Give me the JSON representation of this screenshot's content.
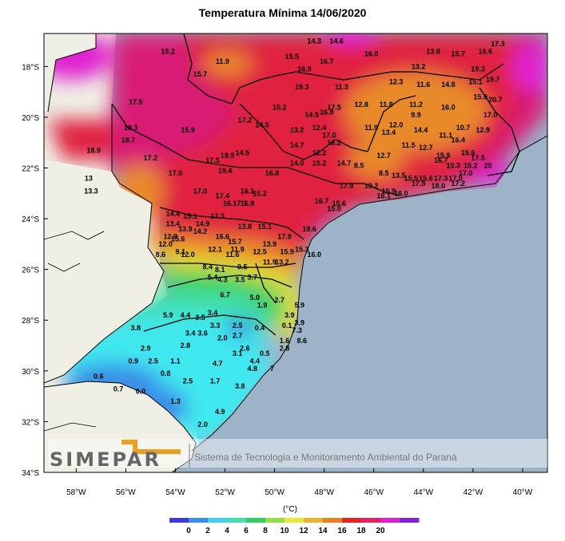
{
  "title": "Temperatura Mínima   14/06/2020",
  "unit_label": "(°C)",
  "watermark": {
    "logo_text": "SIMEPAR",
    "caption": "Sistema de Tecnologia e Monitoramento Ambiental do Paraná"
  },
  "lat_ticks": [
    {
      "label": "18°S",
      "value": -18
    },
    {
      "label": "20°S",
      "value": -20
    },
    {
      "label": "22°S",
      "value": -22
    },
    {
      "label": "24°S",
      "value": -24
    },
    {
      "label": "26°S",
      "value": -26
    },
    {
      "label": "28°S",
      "value": -28
    },
    {
      "label": "30°S",
      "value": -30
    },
    {
      "label": "32°S",
      "value": -32
    },
    {
      "label": "34°S",
      "value": -34
    }
  ],
  "lon_ticks": [
    {
      "label": "58°W",
      "value": -58
    },
    {
      "label": "56°W",
      "value": -56
    },
    {
      "label": "54°W",
      "value": -54
    },
    {
      "label": "52°W",
      "value": -52
    },
    {
      "label": "50°W",
      "value": -50
    },
    {
      "label": "48°W",
      "value": -48
    },
    {
      "label": "46°W",
      "value": -46
    },
    {
      "label": "44°W",
      "value": -44
    },
    {
      "label": "42°W",
      "value": -42
    },
    {
      "label": "40°W",
      "value": -40
    }
  ],
  "colorbar": {
    "colors": [
      "#3a3ae0",
      "#3c8cf0",
      "#40d0f0",
      "#40e0b0",
      "#30d060",
      "#90e040",
      "#e8e830",
      "#f0b030",
      "#e88020",
      "#e82020",
      "#e82060",
      "#e020d0",
      "#8020e0"
    ],
    "tick_labels": [
      "0",
      "2",
      "4",
      "6",
      "8",
      "10",
      "12",
      "14",
      "16",
      "18",
      "20"
    ]
  },
  "colors": {
    "ocean": "#9db3c8",
    "land_outside": "#efefe5",
    "deep_warm": "#d81a74",
    "warm": "#e02040",
    "orange": "#e88a2a",
    "yellow": "#e8e030",
    "green": "#40d060",
    "teal": "#40e0c0",
    "cyan": "#40e8f0",
    "blue": "#3a8ce8",
    "magenta": "#e020d0"
  },
  "stations": [
    {
      "lon": -54.3,
      "lat": -17.5,
      "t": "19.2"
    },
    {
      "lon": -52.1,
      "lat": -17.9,
      "t": "11.9"
    },
    {
      "lon": -49.3,
      "lat": -17.7,
      "t": "15.5"
    },
    {
      "lon": -48.4,
      "lat": -17.1,
      "t": "14.3"
    },
    {
      "lon": -47.5,
      "lat": -17.1,
      "t": "14.6"
    },
    {
      "lon": -46.1,
      "lat": -17.6,
      "t": "16.0"
    },
    {
      "lon": -47.9,
      "lat": -17.9,
      "t": "16.7"
    },
    {
      "lon": -48.8,
      "lat": -18.2,
      "t": "16.9"
    },
    {
      "lon": -43.6,
      "lat": -17.5,
      "t": "13.8"
    },
    {
      "lon": -42.6,
      "lat": -17.6,
      "t": "15.7"
    },
    {
      "lon": -41.0,
      "lat": -17.2,
      "t": "17.3"
    },
    {
      "lon": -44.2,
      "lat": -18.1,
      "t": "13.2"
    },
    {
      "lon": -41.5,
      "lat": -17.5,
      "t": "16.6"
    },
    {
      "lon": -41.8,
      "lat": -18.2,
      "t": "19.3"
    },
    {
      "lon": -41.2,
      "lat": -18.6,
      "t": "19.7"
    },
    {
      "lon": -53.0,
      "lat": -18.4,
      "t": "15.7"
    },
    {
      "lon": -48.9,
      "lat": -18.9,
      "t": "19.3"
    },
    {
      "lon": -47.3,
      "lat": -18.9,
      "t": "11.3"
    },
    {
      "lon": -45.1,
      "lat": -18.7,
      "t": "12.3"
    },
    {
      "lon": -44.0,
      "lat": -18.8,
      "t": "11.6"
    },
    {
      "lon": -43.0,
      "lat": -18.8,
      "t": "14.8"
    },
    {
      "lon": -41.9,
      "lat": -18.7,
      "t": "15.1"
    },
    {
      "lon": -41.7,
      "lat": -19.3,
      "t": "15.9"
    },
    {
      "lon": -41.1,
      "lat": -19.4,
      "t": "20.7"
    },
    {
      "lon": -55.6,
      "lat": -19.5,
      "t": "17.5"
    },
    {
      "lon": -49.8,
      "lat": -19.7,
      "t": "15.2"
    },
    {
      "lon": -47.6,
      "lat": -19.7,
      "t": "17.5"
    },
    {
      "lon": -46.5,
      "lat": -19.6,
      "t": "12.8"
    },
    {
      "lon": -45.5,
      "lat": -19.6,
      "t": "11.8"
    },
    {
      "lon": -44.3,
      "lat": -19.6,
      "t": "11.2"
    },
    {
      "lon": -43.0,
      "lat": -19.7,
      "t": "16.0"
    },
    {
      "lon": -48.5,
      "lat": -20.0,
      "t": "14.5"
    },
    {
      "lon": -47.9,
      "lat": -19.9,
      "t": "16.8"
    },
    {
      "lon": -45.1,
      "lat": -20.4,
      "t": "12.0"
    },
    {
      "lon": -44.3,
      "lat": -20.0,
      "t": "9.9"
    },
    {
      "lon": -41.3,
      "lat": -20.0,
      "t": "17.0"
    },
    {
      "lon": -51.2,
      "lat": -20.2,
      "t": "17.2"
    },
    {
      "lon": -50.5,
      "lat": -20.4,
      "t": "14.5"
    },
    {
      "lon": -49.1,
      "lat": -20.6,
      "t": "13.2"
    },
    {
      "lon": -48.2,
      "lat": -20.5,
      "t": "12.4"
    },
    {
      "lon": -47.8,
      "lat": -20.8,
      "t": "17.0"
    },
    {
      "lon": -46.1,
      "lat": -20.5,
      "t": "11.9"
    },
    {
      "lon": -42.4,
      "lat": -20.5,
      "t": "10.7"
    },
    {
      "lon": -41.6,
      "lat": -20.6,
      "t": "12.9"
    },
    {
      "lon": -55.8,
      "lat": -20.5,
      "t": "19.3"
    },
    {
      "lon": -53.5,
      "lat": -20.6,
      "t": "15.9"
    },
    {
      "lon": -45.4,
      "lat": -20.7,
      "t": "13.4"
    },
    {
      "lon": -44.1,
      "lat": -20.6,
      "t": "14.4"
    },
    {
      "lon": -43.1,
      "lat": -20.8,
      "t": "11.1"
    },
    {
      "lon": -55.9,
      "lat": -21.0,
      "t": "18.7"
    },
    {
      "lon": -47.6,
      "lat": -21.1,
      "t": "16.2"
    },
    {
      "lon": -49.1,
      "lat": -21.2,
      "t": "14.7"
    },
    {
      "lon": -48.2,
      "lat": -21.5,
      "t": "12.2"
    },
    {
      "lon": -44.6,
      "lat": -21.2,
      "t": "11.5"
    },
    {
      "lon": -43.9,
      "lat": -21.3,
      "t": "12.7"
    },
    {
      "lon": -42.6,
      "lat": -21.0,
      "t": "16.4"
    },
    {
      "lon": -57.3,
      "lat": -21.4,
      "t": "18.9"
    },
    {
      "lon": -51.9,
      "lat": -21.6,
      "t": "19.5"
    },
    {
      "lon": -51.3,
      "lat": -21.5,
      "t": "14.5"
    },
    {
      "lon": -55.0,
      "lat": -21.7,
      "t": "17.2"
    },
    {
      "lon": -52.5,
      "lat": -21.8,
      "t": "17.5"
    },
    {
      "lon": -45.6,
      "lat": -21.6,
      "t": "12.7"
    },
    {
      "lon": -43.2,
      "lat": -21.6,
      "t": "15.9"
    },
    {
      "lon": -42.2,
      "lat": -21.5,
      "t": "15.6"
    },
    {
      "lon": -41.8,
      "lat": -21.7,
      "t": "17.5"
    },
    {
      "lon": -49.1,
      "lat": -21.9,
      "t": "14.0"
    },
    {
      "lon": -48.2,
      "lat": -21.9,
      "t": "15.2"
    },
    {
      "lon": -47.2,
      "lat": -21.9,
      "t": "14.7"
    },
    {
      "lon": -46.6,
      "lat": -22.0,
      "t": "8.5"
    },
    {
      "lon": -43.3,
      "lat": -21.8,
      "t": "16.7"
    },
    {
      "lon": -42.8,
      "lat": -22.0,
      "t": "15.3"
    },
    {
      "lon": -42.1,
      "lat": -22.0,
      "t": "15.2"
    },
    {
      "lon": -41.4,
      "lat": -22.0,
      "t": "20"
    },
    {
      "lon": -52.0,
      "lat": -22.2,
      "t": "19.4"
    },
    {
      "lon": -50.1,
      "lat": -22.3,
      "t": "16.8"
    },
    {
      "lon": -54.0,
      "lat": -22.3,
      "t": "17.0"
    },
    {
      "lon": -45.6,
      "lat": -22.3,
      "t": "8.5"
    },
    {
      "lon": -45.0,
      "lat": -22.4,
      "t": "13.5"
    },
    {
      "lon": -44.5,
      "lat": -22.5,
      "t": "15.5"
    },
    {
      "lon": -43.9,
      "lat": -22.5,
      "t": "15.6"
    },
    {
      "lon": -43.3,
      "lat": -22.5,
      "t": "17.3"
    },
    {
      "lon": -42.7,
      "lat": -22.5,
      "t": "17.0"
    },
    {
      "lon": -42.3,
      "lat": -22.3,
      "t": "17.0"
    },
    {
      "lon": -57.5,
      "lat": -22.5,
      "t": "13"
    },
    {
      "lon": -47.1,
      "lat": -22.8,
      "t": "17.9"
    },
    {
      "lon": -46.1,
      "lat": -22.8,
      "t": "19.2"
    },
    {
      "lon": -44.2,
      "lat": -22.7,
      "t": "17.5"
    },
    {
      "lon": -43.4,
      "lat": -22.8,
      "t": "18.0"
    },
    {
      "lon": -42.6,
      "lat": -22.7,
      "t": "17.2"
    },
    {
      "lon": -57.4,
      "lat": -23.0,
      "t": "13.3"
    },
    {
      "lon": -52.1,
      "lat": -23.2,
      "t": "17.4"
    },
    {
      "lon": -53.0,
      "lat": -23.0,
      "t": "17.0"
    },
    {
      "lon": -51.1,
      "lat": -23.0,
      "t": "16.1"
    },
    {
      "lon": -50.6,
      "lat": -23.1,
      "t": "15.2"
    },
    {
      "lon": -45.4,
      "lat": -23.0,
      "t": "15.9"
    },
    {
      "lon": -45.6,
      "lat": -23.2,
      "t": "16.1"
    },
    {
      "lon": -44.9,
      "lat": -23.1,
      "t": "16.0"
    },
    {
      "lon": -51.8,
      "lat": -23.5,
      "t": "16.1"
    },
    {
      "lon": -51.1,
      "lat": -23.5,
      "t": "16.9"
    },
    {
      "lon": -51.4,
      "lat": -23.5,
      "t": "17.1"
    },
    {
      "lon": -48.1,
      "lat": -23.4,
      "t": "16.7"
    },
    {
      "lon": -47.4,
      "lat": -23.5,
      "t": "15.6"
    },
    {
      "lon": -47.6,
      "lat": -23.7,
      "t": "15.0"
    },
    {
      "lon": -53.4,
      "lat": -24.0,
      "t": "15.1"
    },
    {
      "lon": -52.3,
      "lat": -24.0,
      "t": "17.3"
    },
    {
      "lon": -54.1,
      "lat": -23.9,
      "t": "14.4"
    },
    {
      "lon": -52.9,
      "lat": -24.3,
      "t": "14.9"
    },
    {
      "lon": -54.1,
      "lat": -24.3,
      "t": "13.4"
    },
    {
      "lon": -51.2,
      "lat": -24.4,
      "t": "13.8"
    },
    {
      "lon": -50.4,
      "lat": -24.4,
      "t": "15.1"
    },
    {
      "lon": -53.6,
      "lat": -24.5,
      "t": "13.9"
    },
    {
      "lon": -53.0,
      "lat": -24.6,
      "t": "14.2"
    },
    {
      "lon": -52.1,
      "lat": -24.8,
      "t": "16.6"
    },
    {
      "lon": -54.2,
      "lat": -24.8,
      "t": "12.9"
    },
    {
      "lon": -53.9,
      "lat": -24.9,
      "t": "15.6"
    },
    {
      "lon": -51.6,
      "lat": -25.0,
      "t": "15.7"
    },
    {
      "lon": -49.6,
      "lat": -24.8,
      "t": "17.9"
    },
    {
      "lon": -48.6,
      "lat": -24.5,
      "t": "19.6"
    },
    {
      "lon": -50.2,
      "lat": -25.1,
      "t": "13.9"
    },
    {
      "lon": -54.4,
      "lat": -25.1,
      "t": "12.0"
    },
    {
      "lon": -53.8,
      "lat": -25.4,
      "t": "9.1"
    },
    {
      "lon": -53.5,
      "lat": -25.5,
      "t": "12.0"
    },
    {
      "lon": -52.4,
      "lat": -25.3,
      "t": "12.1"
    },
    {
      "lon": -51.5,
      "lat": -25.3,
      "t": "11.9"
    },
    {
      "lon": -51.7,
      "lat": -25.5,
      "t": "11.6"
    },
    {
      "lon": -50.6,
      "lat": -25.4,
      "t": "12.5"
    },
    {
      "lon": -49.5,
      "lat": -25.4,
      "t": "15.9"
    },
    {
      "lon": -48.9,
      "lat": -25.3,
      "t": "15.3"
    },
    {
      "lon": -48.4,
      "lat": -25.5,
      "t": "16.0"
    },
    {
      "lon": -54.6,
      "lat": -25.5,
      "t": "8.6"
    },
    {
      "lon": -50.2,
      "lat": -25.8,
      "t": "11.9"
    },
    {
      "lon": -49.7,
      "lat": -25.8,
      "t": "13.2"
    },
    {
      "lon": -52.7,
      "lat": -26.0,
      "t": "8.4"
    },
    {
      "lon": -52.2,
      "lat": -26.1,
      "t": "8.1"
    },
    {
      "lon": -51.3,
      "lat": -26.0,
      "t": "9.5"
    },
    {
      "lon": -52.5,
      "lat": -26.4,
      "t": "5.4"
    },
    {
      "lon": -52.1,
      "lat": -26.5,
      "t": "4.3"
    },
    {
      "lon": -51.4,
      "lat": -26.5,
      "t": "3.5"
    },
    {
      "lon": -50.9,
      "lat": -26.4,
      "t": "3.7"
    },
    {
      "lon": -52.0,
      "lat": -27.1,
      "t": "6.7"
    },
    {
      "lon": -50.8,
      "lat": -27.2,
      "t": "5.0"
    },
    {
      "lon": -50.5,
      "lat": -27.5,
      "t": "1.9"
    },
    {
      "lon": -49.8,
      "lat": -27.3,
      "t": "2.7"
    },
    {
      "lon": -49.0,
      "lat": -27.5,
      "t": "5.9"
    },
    {
      "lon": -52.5,
      "lat": -27.8,
      "t": "3.4"
    },
    {
      "lon": -54.3,
      "lat": -27.9,
      "t": "5.9"
    },
    {
      "lon": -53.6,
      "lat": -27.9,
      "t": "4.4"
    },
    {
      "lon": -53.0,
      "lat": -28.0,
      "t": "3.5"
    },
    {
      "lon": -49.4,
      "lat": -27.9,
      "t": "3.9"
    },
    {
      "lon": -55.6,
      "lat": -28.4,
      "t": "3.8"
    },
    {
      "lon": -52.4,
      "lat": -28.3,
      "t": "3.3"
    },
    {
      "lon": -51.5,
      "lat": -28.3,
      "t": "2.5"
    },
    {
      "lon": -50.6,
      "lat": -28.4,
      "t": "0.4"
    },
    {
      "lon": -49.5,
      "lat": -28.3,
      "t": "0.1"
    },
    {
      "lon": -49.0,
      "lat": -28.2,
      "t": "3.9"
    },
    {
      "lon": -53.4,
      "lat": -28.6,
      "t": "3.4"
    },
    {
      "lon": -52.9,
      "lat": -28.6,
      "t": "3.6"
    },
    {
      "lon": -51.5,
      "lat": -28.7,
      "t": "2.7"
    },
    {
      "lon": -52.1,
      "lat": -28.8,
      "t": "2.0"
    },
    {
      "lon": -49.1,
      "lat": -28.5,
      "t": "7.3"
    },
    {
      "lon": -49.6,
      "lat": -28.9,
      "t": "1.6"
    },
    {
      "lon": -48.9,
      "lat": -28.9,
      "t": "8.6"
    },
    {
      "lon": -55.2,
      "lat": -29.2,
      "t": "2.9"
    },
    {
      "lon": -53.6,
      "lat": -29.1,
      "t": "2.8"
    },
    {
      "lon": -51.2,
      "lat": -29.2,
      "t": "2.6"
    },
    {
      "lon": -51.5,
      "lat": -29.4,
      "t": "3.1"
    },
    {
      "lon": -50.4,
      "lat": -29.4,
      "t": "0.5"
    },
    {
      "lon": -49.6,
      "lat": -29.2,
      "t": "2.8"
    },
    {
      "lon": -55.7,
      "lat": -29.7,
      "t": "0.9"
    },
    {
      "lon": -54.9,
      "lat": -29.7,
      "t": "2.5"
    },
    {
      "lon": -54.0,
      "lat": -29.7,
      "t": "1.1"
    },
    {
      "lon": -52.3,
      "lat": -29.8,
      "t": "4.7"
    },
    {
      "lon": -50.8,
      "lat": -29.7,
      "t": "4.4"
    },
    {
      "lon": -50.9,
      "lat": -30.0,
      "t": "4.8"
    },
    {
      "lon": -50.1,
      "lat": -30.0,
      "t": "7"
    },
    {
      "lon": -57.1,
      "lat": -30.3,
      "t": "0.6"
    },
    {
      "lon": -54.4,
      "lat": -30.2,
      "t": "0.8"
    },
    {
      "lon": -53.5,
      "lat": -30.5,
      "t": "2.5"
    },
    {
      "lon": -52.4,
      "lat": -30.5,
      "t": "1.7"
    },
    {
      "lon": -51.4,
      "lat": -30.7,
      "t": "3.8"
    },
    {
      "lon": -56.3,
      "lat": -30.8,
      "t": "0.7"
    },
    {
      "lon": -55.4,
      "lat": -30.9,
      "t": "0.0"
    },
    {
      "lon": -54.0,
      "lat": -31.3,
      "t": "1.3"
    },
    {
      "lon": -52.2,
      "lat": -31.7,
      "t": "4.9"
    },
    {
      "lon": -52.9,
      "lat": -32.2,
      "t": "2.0"
    }
  ]
}
